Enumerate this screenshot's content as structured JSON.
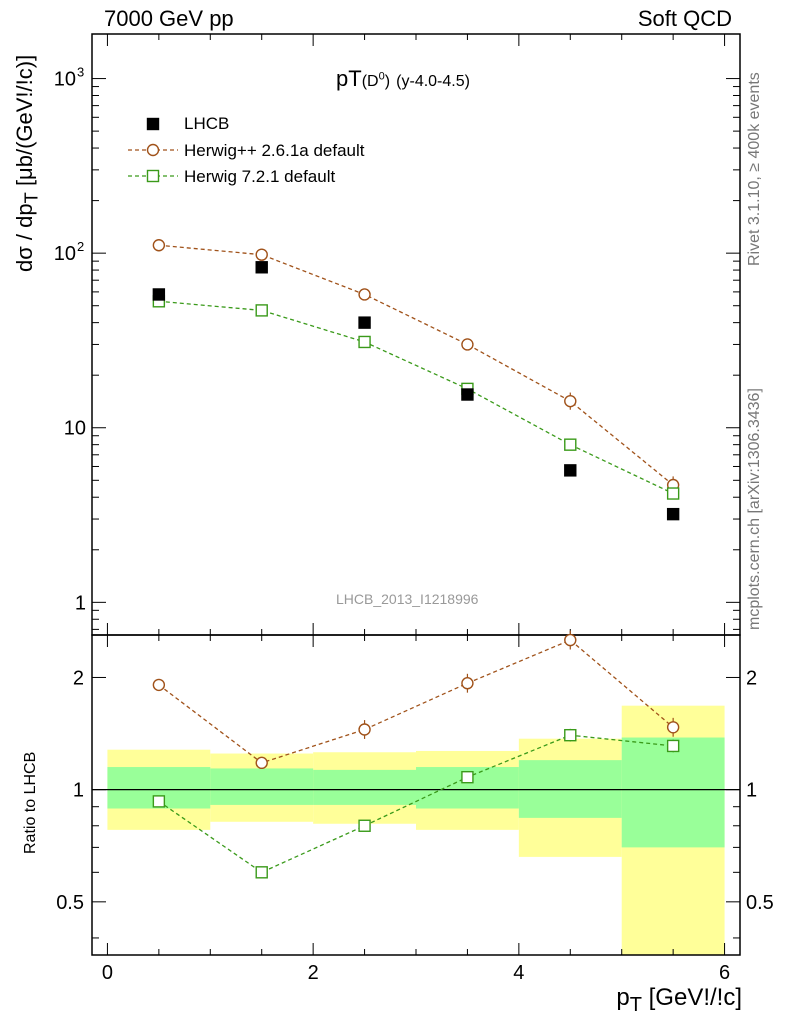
{
  "header": {
    "collision": "7000 GeV pp",
    "process": "Soft QCD"
  },
  "side_text": {
    "rivet": "Rivet 3.1.10, ≥ 400k events",
    "source": "mcplots.cern.ch [arXiv:1306.3436]"
  },
  "colors": {
    "data": "#000000",
    "herwigpp": "#a0521a",
    "herwig7": "#3a9a1a",
    "band_inner": "#99ff99",
    "band_outer": "#ffff99"
  },
  "chart_data": [
    {
      "type": "scatter",
      "title_main": "pT",
      "title_particle": "D",
      "title_particle_sup": "0",
      "title_range": "(y-4.0-4.5)",
      "ylabel_main": "dσ / dp",
      "ylabel_sub": "T",
      "ylabel_unit": " [μb/(GeV!/!c)]",
      "yscale": "log",
      "ylim": [
        0.65,
        1800
      ],
      "xlim": [
        -0.15,
        6.15
      ],
      "y_ticks": [
        {
          "value": 1,
          "label": "1"
        },
        {
          "value": 10,
          "label": "10"
        },
        {
          "value": 100,
          "label": "10",
          "sup": "2"
        },
        {
          "value": 1000,
          "label": "10",
          "sup": "3"
        }
      ],
      "watermark": "LHCB_2013_I1218996",
      "x": [
        0.5,
        1.5,
        2.5,
        3.5,
        4.5,
        5.5
      ],
      "series": [
        {
          "name": "LHCB",
          "values": [
            58,
            83,
            40,
            15.5,
            5.7,
            3.2
          ]
        },
        {
          "name": "Herwig++ 2.6.1a default",
          "values": [
            111,
            98,
            58,
            30,
            14.2,
            4.7
          ]
        },
        {
          "name": "Herwig 7.2.1 default",
          "values": [
            53,
            47,
            31,
            16.7,
            8.0,
            4.2
          ]
        }
      ],
      "legend_position": "top-left"
    },
    {
      "type": "scatter",
      "ylabel": "Ratio to LHCB",
      "xlabel_main": "p",
      "xlabel_sub": "T",
      "xlabel_unit": " [GeV!/!c]",
      "yscale": "log",
      "ylim": [
        0.36,
        2.6
      ],
      "xlim": [
        -0.15,
        6.15
      ],
      "x_ticks": [
        0,
        2,
        4,
        6
      ],
      "y_ticks": [
        {
          "value": 0.5,
          "label": "0.5"
        },
        {
          "value": 1,
          "label": "1"
        },
        {
          "value": 2,
          "label": "2"
        }
      ],
      "x": [
        0.5,
        1.5,
        2.5,
        3.5,
        4.5,
        5.5
      ],
      "bins": [
        [
          0,
          1
        ],
        [
          1,
          2
        ],
        [
          2,
          3
        ],
        [
          3,
          4
        ],
        [
          4,
          5
        ],
        [
          5,
          6
        ]
      ],
      "band_outer": [
        [
          0.78,
          1.28
        ],
        [
          0.82,
          1.25
        ],
        [
          0.81,
          1.26
        ],
        [
          0.78,
          1.27
        ],
        [
          0.66,
          1.37
        ],
        [
          0.33,
          1.68
        ]
      ],
      "band_inner": [
        [
          0.89,
          1.15
        ],
        [
          0.91,
          1.14
        ],
        [
          0.91,
          1.13
        ],
        [
          0.89,
          1.15
        ],
        [
          0.84,
          1.2
        ],
        [
          0.7,
          1.38
        ]
      ],
      "series": [
        {
          "name": "Herwig++ 2.6.1a default",
          "values": [
            1.91,
            1.18,
            1.45,
            1.93,
            2.52,
            1.47
          ]
        },
        {
          "name": "Herwig 7.2.1 default",
          "values": [
            0.93,
            0.6,
            0.8,
            1.08,
            1.4,
            1.31
          ]
        }
      ]
    }
  ]
}
